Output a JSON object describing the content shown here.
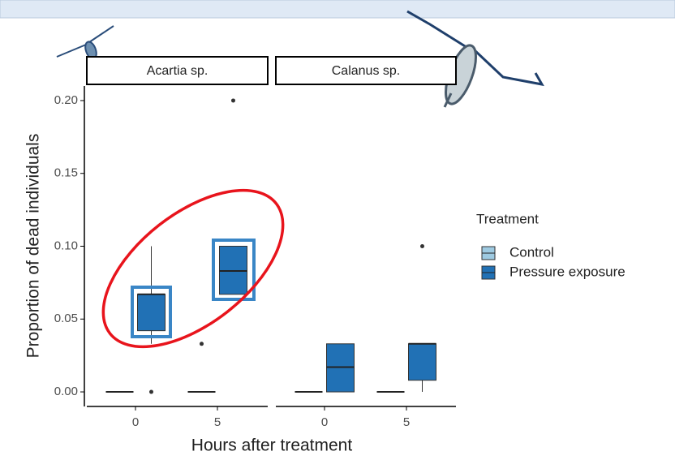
{
  "chart_data": {
    "type": "boxplot",
    "x_label": "Hours after treatment",
    "y_label": "Proportion of dead individuals",
    "legend_title": "Treatment",
    "legend_position": "right",
    "ylim": [
      -0.01,
      0.21
    ],
    "yticks": [
      {
        "value": 0,
        "label": "0.00"
      },
      {
        "value": 0.05,
        "label": "0.05"
      },
      {
        "value": 0.1,
        "label": "0.10"
      },
      {
        "value": 0.15,
        "label": "0.15"
      },
      {
        "value": 0.2,
        "label": "0.20"
      }
    ],
    "series": [
      {
        "name": "Control",
        "color": "#9ecae1"
      },
      {
        "name": "Pressure exposure",
        "color": "#2171b5"
      }
    ],
    "panels": [
      {
        "title": "Acartia sp.",
        "categories": [
          "0",
          "5"
        ],
        "data": [
          [
            {
              "min": 0,
              "q1": 0,
              "median": 0,
              "q3": 0,
              "max": 0,
              "outliers": []
            },
            {
              "min": 0,
              "q1": 0,
              "median": 0,
              "q3": 0,
              "max": 0,
              "outliers": [
                0.033
              ]
            }
          ],
          [
            {
              "min": 0.033,
              "q1": 0.042,
              "median": 0.067,
              "q3": 0.067,
              "max": 0.1,
              "outliers": [
                0
              ]
            },
            {
              "min": 0.067,
              "q1": 0.067,
              "median": 0.083,
              "q3": 0.1,
              "max": 0.1,
              "outliers": [
                0.2
              ]
            }
          ]
        ]
      },
      {
        "title": "Calanus sp.",
        "categories": [
          "0",
          "5"
        ],
        "data": [
          [
            {
              "min": 0,
              "q1": 0,
              "median": 0,
              "q3": 0,
              "max": 0,
              "outliers": []
            },
            {
              "min": 0,
              "q1": 0,
              "median": 0,
              "q3": 0,
              "max": 0,
              "outliers": []
            }
          ],
          [
            {
              "min": 0,
              "q1": 0,
              "median": 0.017,
              "q3": 0.033,
              "max": 0.033,
              "outliers": []
            },
            {
              "min": 0,
              "q1": 0.008,
              "median": 0.033,
              "q3": 0.033,
              "max": 0.033,
              "outliers": [
                0.1
              ]
            }
          ]
        ]
      }
    ]
  }
}
